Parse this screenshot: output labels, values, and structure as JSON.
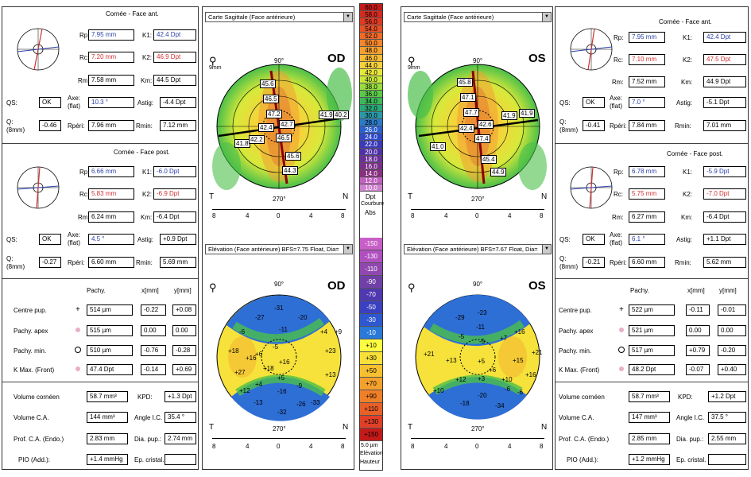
{
  "left_eye": {
    "ant": {
      "title": "Cornée - Face ant.",
      "rp": "7.95 mm",
      "rc": "7.20 mm",
      "rm": "7.58 mm",
      "k1": "42.4 Dpt",
      "k2": "46.9 Dpt",
      "km": "44.5 Dpt",
      "qs": "OK",
      "axe": "10.3 °",
      "astig": "-4.4 Dpt",
      "q": "-0.46",
      "rperi": "7.96 mm",
      "rmin": "7.12 mm"
    },
    "post": {
      "title": "Cornée - Face post.",
      "rp": "6.66 mm",
      "rc": "5.83 mm",
      "rm": "6.24 mm",
      "k1": "-6.0 Dpt",
      "k2": "-6.9 Dpt",
      "km": "-6.4 Dpt",
      "qs": "OK",
      "axe": "4.5 °",
      "astig": "+0.9 Dpt",
      "q": "-0.27",
      "rperi": "6.60 mm",
      "rmin": "5.69 mm"
    },
    "pachy": {
      "centre": "514 µm",
      "centre_x": "-0.22",
      "centre_y": "+0.08",
      "apex": "515 µm",
      "apex_x": "0.00",
      "apex_y": "0.00",
      "min": "510 µm",
      "min_x": "-0.76",
      "min_y": "-0.28",
      "kmax": "47.4 Dpt",
      "kmax_x": "-0.14",
      "kmax_y": "+0.69"
    },
    "vol": {
      "volume": "58.7 mm³",
      "kpd": "+1.3 Dpt",
      "vol_ca": "144 mm³",
      "angle": "35.4 °",
      "prof": "2.83 mm",
      "dia": "2.74 mm",
      "pio": "+1.4 mmHg",
      "ep": ""
    },
    "map1": {
      "dropdown": "Carte Sagittale (Face antérieure)",
      "eye": "OD",
      "values": [
        "45.6",
        "46.5",
        "47.2",
        "42.4",
        "42.7",
        "41.9",
        "40.2",
        "41.8",
        "42.2",
        "46.5",
        "45.6",
        "44.3"
      ]
    },
    "map2": {
      "dropdown": "Elévation (Face antérieure)  BFS=7.75 Float, Dia=",
      "eye": "OD",
      "values": [
        "-31",
        "-27",
        "-20",
        "-11",
        "-6",
        "+4",
        "+9",
        "-5",
        "+18",
        "+23",
        "+16",
        "+6",
        "+16",
        "+18",
        "+27",
        "+5",
        "+4",
        "+13",
        "+12",
        "-9",
        "-16",
        "-13",
        "-26",
        "-32",
        "-33"
      ]
    }
  },
  "right_eye": {
    "ant": {
      "title": "Cornée - Face ant.",
      "rp": "7.95 mm",
      "rc": "7.10 mm",
      "rm": "7.52 mm",
      "k1": "42.4 Dpt",
      "k2": "47.5 Dpt",
      "km": "44.9 Dpt",
      "qs": "OK",
      "axe": "7.0 °",
      "astig": "-5.1 Dpt",
      "q": "-0.41",
      "rperi": "7.84 mm",
      "rmin": "7.01 mm"
    },
    "post": {
      "title": "Cornée - Face post.",
      "rp": "6.78 mm",
      "rc": "5.75 mm",
      "rm": "6.27 mm",
      "k1": "-5.9 Dpt",
      "k2": "-7.0 Dpt",
      "km": "-6.4 Dpt",
      "qs": "OK",
      "axe": "6.1 °",
      "astig": "+1.1 Dpt",
      "q": "-0.21",
      "rperi": "6.60 mm",
      "rmin": "5.62 mm"
    },
    "pachy": {
      "centre": "522 µm",
      "centre_x": "-0.11",
      "centre_y": "-0.01",
      "apex": "521 µm",
      "apex_x": "0.00",
      "apex_y": "0.00",
      "min": "517 µm",
      "min_x": "+0.79",
      "min_y": "-0.20",
      "kmax": "48.2 Dpt",
      "kmax_x": "-0.07",
      "kmax_y": "+0.40"
    },
    "vol": {
      "volume": "58.7 mm³",
      "kpd": "+1.2 Dpt",
      "vol_ca": "147 mm³",
      "angle": "37.5 °",
      "prof": "2.85 mm",
      "dia": "2.55 mm",
      "pio": "+1.2 mmHg",
      "ep": ""
    },
    "map1": {
      "dropdown": "Carte Sagittale (Face antérieure)",
      "eye": "OS",
      "values": [
        "45.8",
        "47.1",
        "47.7",
        "42.4",
        "42.6",
        "41.9",
        "41.9",
        "41.0",
        "47.4",
        "45.4",
        "44.9"
      ]
    },
    "map2": {
      "dropdown": "Elévation (Face antérieure)  BFS=7.67 Float, Dia=",
      "eye": "OS",
      "values": [
        "-29",
        "-23",
        "-11",
        "-5",
        "-5",
        "+7",
        "+16",
        "+21",
        "+13",
        "+15",
        "+21",
        "+5",
        "+6",
        "+3",
        "+10",
        "+12",
        "+10",
        "+16",
        "-6",
        "-20",
        "-18",
        "-34",
        "-6"
      ]
    }
  },
  "labels": {
    "rp": "Rp:",
    "rc": "Rc:",
    "rm": "Rm:",
    "k1": "K1:",
    "k2": "K2:",
    "km": "Km:",
    "qs": "QS:",
    "axe": "Axe:",
    "flat": "(flat)",
    "astig": "Astig:",
    "q": "Q:",
    "q8": "(8mm)",
    "rperi": "Rpéri:",
    "rmin": "Rmin:",
    "pachy": "Pachy.",
    "xmm": "x[mm]",
    "ymm": "y[mm]",
    "centre": "Centre pup.",
    "apex": "Pachy. apex",
    "pmin": "Pachy. min.",
    "kmax": "K Max. (Front)",
    "volume": "Volume cornéen",
    "kpd": "KPD:",
    "vol_ca": "Volume C.A.",
    "angle": "Angle I.C.",
    "prof": "Prof. C.A. (Endo.)",
    "dia": "Dia. pup.:",
    "pio": "PIO (Add.):",
    "ep": "Ep. cristal.",
    "t": "T",
    "n": "N",
    "mm9": "9mm",
    "d0": "0°",
    "d90": "90°",
    "d180": "180°",
    "d270": "270°",
    "zoom": "9mm"
  },
  "legend": {
    "top": [
      "60.0",
      "58.0",
      "56.0",
      "54.0",
      "52.0",
      "50.0",
      "48.0",
      "46.0",
      "44.0",
      "42.0",
      "40.0",
      "38.0",
      "36.0",
      "34.0",
      "32.0",
      "30.0",
      "28.0",
      "26.0",
      "24.0",
      "22.0",
      "20.0",
      "18.0",
      "16.0",
      "14.0",
      "12.0",
      "10.0"
    ],
    "top_unit": "Dpt",
    "top_name": "Courbure",
    "top_mode": "Abs",
    "bottom": [
      "150",
      "140",
      "130",
      "120",
      "110",
      "100",
      "90",
      "80",
      "70",
      "60",
      "50",
      "40",
      "30",
      "20",
      "10",
      "0",
      "+10",
      "+20",
      "+30",
      "+40",
      "+50",
      "+60",
      "+70",
      "+80",
      "+90",
      "+100",
      "+110",
      "+120",
      "+130",
      "+140",
      "+150"
    ],
    "bottom_show": [
      "-150",
      "-130",
      "-110",
      "-90",
      "-70",
      "-50",
      "-30",
      "-10",
      "+10",
      "+30",
      "+50",
      "+70",
      "+90",
      "+110",
      "+130",
      "+150"
    ],
    "bottom_unit": "5.0 µm",
    "bottom_name": "Elévation",
    "bottom_mode": "Hauteur"
  },
  "colors": {
    "blue": "#2b3fa8",
    "red": "#d03030"
  }
}
